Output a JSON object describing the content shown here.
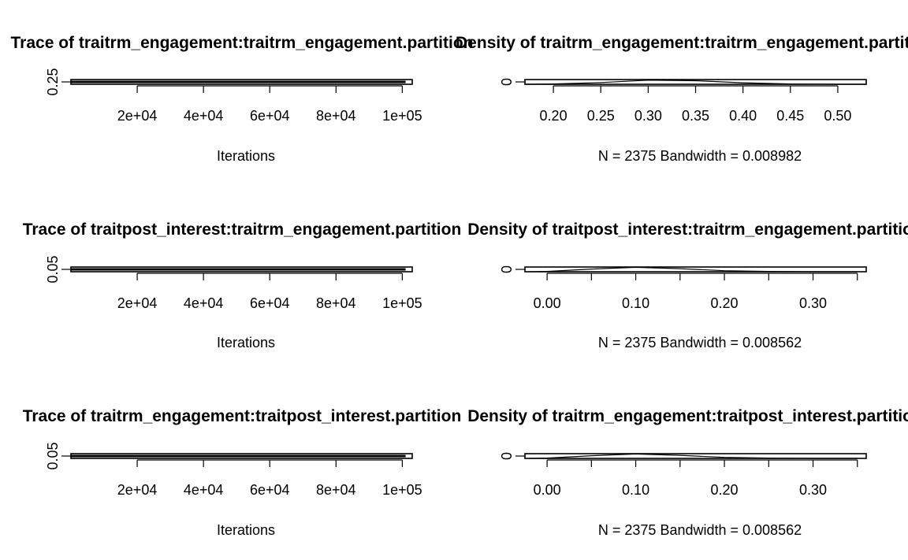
{
  "chart_data": [
    {
      "type": "line",
      "panel": "trace",
      "title": "Trace of traitrm_engagement:traitrm_engagement.partition",
      "xlabel": "Iterations",
      "ylabel": "",
      "xlim": [
        1,
        103000
      ],
      "ylim": [
        0.2,
        0.3
      ],
      "x_ticks": [
        20000,
        40000,
        60000,
        80000,
        100000
      ],
      "x_tick_labels": [
        "2e+04",
        "4e+04",
        "6e+04",
        "8e+04",
        "1e+05"
      ],
      "y_ticks": [
        0.25
      ],
      "y_tick_labels": [
        "0.25"
      ],
      "series": [
        {
          "x": [
            1,
            101000
          ],
          "values": [
            0.25,
            0.25
          ]
        }
      ]
    },
    {
      "type": "line",
      "panel": "density",
      "title": "Density of traitrm_engagement:traitrm_engagement.partition",
      "xlabel": "N = 2375   Bandwidth = 0.008982",
      "ylabel": "",
      "xlim": [
        0.17,
        0.53
      ],
      "ylim": [
        0,
        16
      ],
      "x_ticks": [
        0.2,
        0.25,
        0.3,
        0.35,
        0.4,
        0.45,
        0.5
      ],
      "x_tick_labels": [
        "0.20",
        "0.25",
        "0.30",
        "0.35",
        "0.40",
        "0.45",
        "0.50"
      ],
      "y_ticks": [
        0
      ],
      "y_tick_labels": [
        "0"
      ],
      "series": [
        {
          "x": [
            0.17,
            0.2,
            0.25,
            0.3,
            0.35,
            0.4,
            0.45,
            0.5,
            0.53
          ],
          "values": [
            0,
            1,
            6,
            14,
            12,
            5,
            1,
            0,
            0
          ]
        }
      ]
    },
    {
      "type": "line",
      "panel": "trace",
      "title": "Trace of traitpost_interest:traitrm_engagement.partition",
      "xlabel": "Iterations",
      "ylabel": "",
      "xlim": [
        1,
        103000
      ],
      "ylim": [
        0,
        0.1
      ],
      "x_ticks": [
        20000,
        40000,
        60000,
        80000,
        100000
      ],
      "x_tick_labels": [
        "2e+04",
        "4e+04",
        "6e+04",
        "8e+04",
        "1e+05"
      ],
      "y_ticks": [
        0.05
      ],
      "y_tick_labels": [
        "0.05"
      ],
      "series": [
        {
          "x": [
            1,
            101000
          ],
          "values": [
            0.05,
            0.05
          ]
        }
      ]
    },
    {
      "type": "line",
      "panel": "density",
      "title": "Density of traitpost_interest:traitrm_engagement.partition",
      "xlabel": "N = 2375   Bandwidth = 0.008562",
      "ylabel": "",
      "xlim": [
        -0.025,
        0.36
      ],
      "ylim": [
        0,
        14
      ],
      "x_ticks": [
        0,
        0.05,
        0.1,
        0.15,
        0.2,
        0.25,
        0.3,
        0.35
      ],
      "x_tick_labels": [
        "0.00",
        "",
        "0.10",
        "",
        "0.20",
        "",
        "0.30",
        ""
      ],
      "y_ticks": [
        0
      ],
      "y_tick_labels": [
        "0"
      ],
      "series": [
        {
          "x": [
            -0.02,
            0.0,
            0.05,
            0.1,
            0.15,
            0.2,
            0.25,
            0.3,
            0.35
          ],
          "values": [
            0,
            1,
            8,
            13,
            9,
            3,
            1,
            0,
            0
          ]
        }
      ]
    },
    {
      "type": "line",
      "panel": "trace",
      "title": "Trace of traitrm_engagement:traitpost_interest.partition",
      "xlabel": "Iterations",
      "ylabel": "",
      "xlim": [
        1,
        103000
      ],
      "ylim": [
        0,
        0.1
      ],
      "x_ticks": [
        20000,
        40000,
        60000,
        80000,
        100000
      ],
      "x_tick_labels": [
        "2e+04",
        "4e+04",
        "6e+04",
        "8e+04",
        "1e+05"
      ],
      "y_ticks": [
        0.05
      ],
      "y_tick_labels": [
        "0.05"
      ],
      "series": [
        {
          "x": [
            1,
            101000
          ],
          "values": [
            0.05,
            0.05
          ]
        }
      ]
    },
    {
      "type": "line",
      "panel": "density",
      "title": "Density of traitrm_engagement:traitpost_interest.partition",
      "xlabel": "N = 2375   Bandwidth = 0.008562",
      "ylabel": "",
      "xlim": [
        -0.025,
        0.36
      ],
      "ylim": [
        0,
        14
      ],
      "x_ticks": [
        0,
        0.05,
        0.1,
        0.15,
        0.2,
        0.25,
        0.3,
        0.35
      ],
      "x_tick_labels": [
        "0.00",
        "",
        "0.10",
        "",
        "0.20",
        "",
        "0.30",
        ""
      ],
      "y_ticks": [
        0
      ],
      "y_tick_labels": [
        "0"
      ],
      "series": [
        {
          "x": [
            -0.02,
            0.0,
            0.05,
            0.1,
            0.15,
            0.2,
            0.25,
            0.3,
            0.35
          ],
          "values": [
            0,
            1,
            8,
            13,
            9,
            3,
            1,
            0,
            0
          ]
        }
      ]
    }
  ]
}
